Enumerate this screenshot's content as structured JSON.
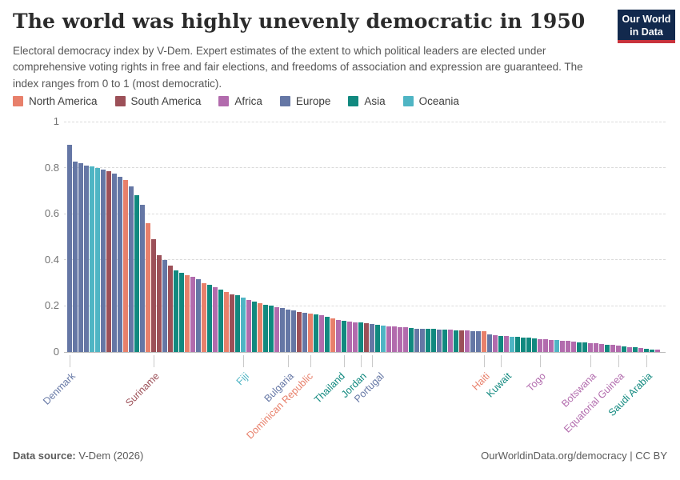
{
  "header": {
    "title": "The world was highly unevenly democratic in 1950",
    "logo_line1": "Our World",
    "logo_line2": "in Data"
  },
  "subtitle": "Electoral democracy index by V-Dem. Expert estimates of the extent to which political leaders are elected under comprehensive voting rights in free and fair elections, and freedoms of association and expression are guaranteed. The index ranges from 0 to 1 (most democratic).",
  "colors": {
    "NA": "#e8806b",
    "SA": "#9c5058",
    "AF": "#b26bad",
    "EU": "#6577a5",
    "AS": "#11897f",
    "OC": "#4fb5c4"
  },
  "legend": {
    "items": [
      {
        "label": "North America",
        "code": "NA"
      },
      {
        "label": "South America",
        "code": "SA"
      },
      {
        "label": "Africa",
        "code": "AF"
      },
      {
        "label": "Europe",
        "code": "EU"
      },
      {
        "label": "Asia",
        "code": "AS"
      },
      {
        "label": "Oceania",
        "code": "OC"
      }
    ]
  },
  "chart_data": {
    "type": "bar",
    "title": "Electoral democracy index, 1950",
    "ylabel": "",
    "ylim": [
      0,
      1
    ],
    "yticks": [
      "0",
      "0.2",
      "0.4",
      "0.6",
      "0.8",
      "1"
    ],
    "grid": "dashed-horizontal",
    "legend_position": "top",
    "bars": [
      {
        "v": 0.9,
        "c": "EU"
      },
      {
        "v": 0.825,
        "c": "EU"
      },
      {
        "v": 0.82,
        "c": "EU"
      },
      {
        "v": 0.81,
        "c": "EU"
      },
      {
        "v": 0.805,
        "c": "OC"
      },
      {
        "v": 0.8,
        "c": "OC"
      },
      {
        "v": 0.79,
        "c": "EU"
      },
      {
        "v": 0.785,
        "c": "SA"
      },
      {
        "v": 0.775,
        "c": "EU"
      },
      {
        "v": 0.76,
        "c": "EU"
      },
      {
        "v": 0.745,
        "c": "NA"
      },
      {
        "v": 0.72,
        "c": "EU"
      },
      {
        "v": 0.68,
        "c": "AS"
      },
      {
        "v": 0.64,
        "c": "EU"
      },
      {
        "v": 0.56,
        "c": "NA"
      },
      {
        "v": 0.49,
        "c": "SA"
      },
      {
        "v": 0.42,
        "c": "SA"
      },
      {
        "v": 0.4,
        "c": "EU"
      },
      {
        "v": 0.375,
        "c": "SA"
      },
      {
        "v": 0.355,
        "c": "AS"
      },
      {
        "v": 0.345,
        "c": "AS"
      },
      {
        "v": 0.335,
        "c": "NA"
      },
      {
        "v": 0.325,
        "c": "AF"
      },
      {
        "v": 0.315,
        "c": "EU"
      },
      {
        "v": 0.3,
        "c": "NA"
      },
      {
        "v": 0.29,
        "c": "AS"
      },
      {
        "v": 0.28,
        "c": "AF"
      },
      {
        "v": 0.27,
        "c": "AS"
      },
      {
        "v": 0.26,
        "c": "NA"
      },
      {
        "v": 0.25,
        "c": "SA"
      },
      {
        "v": 0.245,
        "c": "AS"
      },
      {
        "v": 0.235,
        "c": "OC"
      },
      {
        "v": 0.225,
        "c": "AF"
      },
      {
        "v": 0.22,
        "c": "AS"
      },
      {
        "v": 0.212,
        "c": "NA"
      },
      {
        "v": 0.206,
        "c": "AS"
      },
      {
        "v": 0.2,
        "c": "AS"
      },
      {
        "v": 0.195,
        "c": "AF"
      },
      {
        "v": 0.19,
        "c": "EU"
      },
      {
        "v": 0.185,
        "c": "EU"
      },
      {
        "v": 0.18,
        "c": "EU"
      },
      {
        "v": 0.175,
        "c": "SA"
      },
      {
        "v": 0.171,
        "c": "EU"
      },
      {
        "v": 0.167,
        "c": "NA"
      },
      {
        "v": 0.162,
        "c": "AS"
      },
      {
        "v": 0.158,
        "c": "AF"
      },
      {
        "v": 0.152,
        "c": "AS"
      },
      {
        "v": 0.147,
        "c": "NA"
      },
      {
        "v": 0.14,
        "c": "AF"
      },
      {
        "v": 0.136,
        "c": "AS"
      },
      {
        "v": 0.133,
        "c": "AF"
      },
      {
        "v": 0.13,
        "c": "AF"
      },
      {
        "v": 0.127,
        "c": "AS"
      },
      {
        "v": 0.124,
        "c": "SA"
      },
      {
        "v": 0.12,
        "c": "EU"
      },
      {
        "v": 0.118,
        "c": "AS"
      },
      {
        "v": 0.115,
        "c": "OC"
      },
      {
        "v": 0.112,
        "c": "AF"
      },
      {
        "v": 0.11,
        "c": "AF"
      },
      {
        "v": 0.108,
        "c": "AF"
      },
      {
        "v": 0.106,
        "c": "AF"
      },
      {
        "v": 0.104,
        "c": "AS"
      },
      {
        "v": 0.102,
        "c": "EU"
      },
      {
        "v": 0.101,
        "c": "EU"
      },
      {
        "v": 0.1,
        "c": "AS"
      },
      {
        "v": 0.099,
        "c": "AS"
      },
      {
        "v": 0.098,
        "c": "EU"
      },
      {
        "v": 0.097,
        "c": "AS"
      },
      {
        "v": 0.096,
        "c": "AF"
      },
      {
        "v": 0.095,
        "c": "AS"
      },
      {
        "v": 0.094,
        "c": "SA"
      },
      {
        "v": 0.093,
        "c": "AF"
      },
      {
        "v": 0.092,
        "c": "EU"
      },
      {
        "v": 0.091,
        "c": "EU"
      },
      {
        "v": 0.089,
        "c": "NA"
      },
      {
        "v": 0.078,
        "c": "EU"
      },
      {
        "v": 0.074,
        "c": "AF"
      },
      {
        "v": 0.071,
        "c": "AS"
      },
      {
        "v": 0.069,
        "c": "AF"
      },
      {
        "v": 0.067,
        "c": "OC"
      },
      {
        "v": 0.065,
        "c": "AS"
      },
      {
        "v": 0.063,
        "c": "AS"
      },
      {
        "v": 0.061,
        "c": "AS"
      },
      {
        "v": 0.059,
        "c": "AS"
      },
      {
        "v": 0.057,
        "c": "AF"
      },
      {
        "v": 0.055,
        "c": "AF"
      },
      {
        "v": 0.053,
        "c": "AF"
      },
      {
        "v": 0.051,
        "c": "OC"
      },
      {
        "v": 0.049,
        "c": "AF"
      },
      {
        "v": 0.047,
        "c": "AF"
      },
      {
        "v": 0.046,
        "c": "AF"
      },
      {
        "v": 0.043,
        "c": "AS"
      },
      {
        "v": 0.041,
        "c": "AS"
      },
      {
        "v": 0.039,
        "c": "AF"
      },
      {
        "v": 0.037,
        "c": "AF"
      },
      {
        "v": 0.035,
        "c": "AF"
      },
      {
        "v": 0.032,
        "c": "AS"
      },
      {
        "v": 0.03,
        "c": "AF"
      },
      {
        "v": 0.028,
        "c": "AF"
      },
      {
        "v": 0.025,
        "c": "AS"
      },
      {
        "v": 0.022,
        "c": "AF"
      },
      {
        "v": 0.02,
        "c": "AS"
      },
      {
        "v": 0.018,
        "c": "AF"
      },
      {
        "v": 0.015,
        "c": "AS"
      },
      {
        "v": 0.012,
        "c": "AS"
      },
      {
        "v": 0.01,
        "c": "AF"
      }
    ],
    "labeled_bars": [
      {
        "index": 0,
        "label": "Denmark",
        "c": "EU"
      },
      {
        "index": 15,
        "label": "Suriname",
        "c": "SA"
      },
      {
        "index": 31,
        "label": "Fiji",
        "c": "OC"
      },
      {
        "index": 39,
        "label": "Bulgaria",
        "c": "EU"
      },
      {
        "index": 43,
        "label": "Dominican Republic",
        "c": "NA"
      },
      {
        "index": 49,
        "label": "Thailand",
        "c": "AS"
      },
      {
        "index": 52,
        "label": "Jordan",
        "c": "AS"
      },
      {
        "index": 54,
        "label": "Portugal",
        "c": "EU"
      },
      {
        "index": 74,
        "label": "Haiti",
        "c": "NA"
      },
      {
        "index": 77,
        "label": "Kuwait",
        "c": "AS"
      },
      {
        "index": 84,
        "label": "Togo",
        "c": "AF"
      },
      {
        "index": 93,
        "label": "Botswana",
        "c": "AF"
      },
      {
        "index": 98,
        "label": "Equatorial Guinea",
        "c": "AF"
      },
      {
        "index": 103,
        "label": "Saudi Arabia",
        "c": "AS"
      }
    ]
  },
  "footer": {
    "source_label": "Data source:",
    "source_value": " V-Dem (2026)",
    "right": "OurWorldinData.org/democracy | CC BY"
  }
}
